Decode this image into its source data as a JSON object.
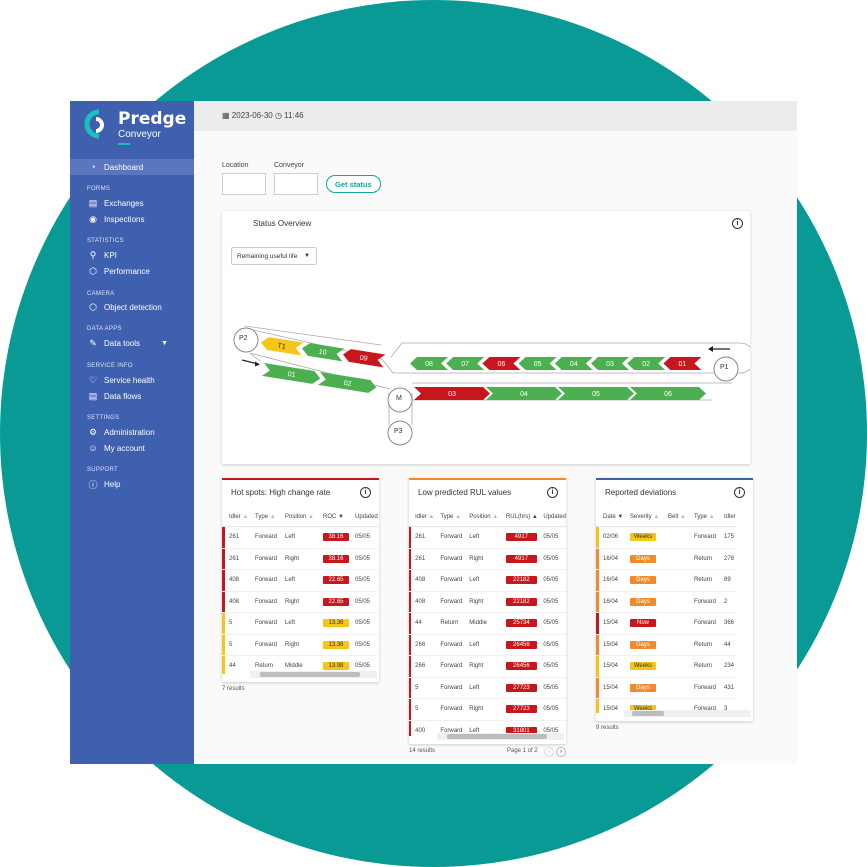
{
  "colors": {
    "teal": "#0a9a95",
    "sidebar": "#3f5faf",
    "red": "#c8161d",
    "green": "#4caf50",
    "yellow": "#f5c518",
    "orange": "#f08a2a"
  },
  "brand": {
    "name": "Predge",
    "product": "Conveyor"
  },
  "sidebar": {
    "dashboard": "Dashboard",
    "sections": {
      "forms": "FORMS",
      "statistics": "STATISTICS",
      "camera": "CAMERA",
      "data_apps": "DATA APPS",
      "service_info": "SERVICE INFO",
      "settings": "SETTINGS",
      "support": "SUPPORT"
    },
    "items": {
      "exchanges": "Exchanges",
      "inspections": "Inspections",
      "kpi": "KPI",
      "performance": "Performance",
      "object_detection": "Object detection",
      "data_tools": "Data tools",
      "service_health": "Service health",
      "data_flows": "Data flows",
      "administration": "Administration",
      "my_account": "My account",
      "help": "Help"
    }
  },
  "topbar": {
    "date": "2023-06-30",
    "time": "11:46"
  },
  "filters": {
    "location_label": "Location",
    "conveyor_label": "Conveyor",
    "location_value": "",
    "conveyor_value": "",
    "button": "Get status"
  },
  "overview": {
    "title": "Status Overview",
    "select": "Remaining useful life",
    "nodes": {
      "p1": "P1",
      "p2": "P2",
      "p3": "P3",
      "m": "M"
    },
    "upper_left": [
      {
        "label": "T1",
        "status": "yellow"
      },
      {
        "label": "10",
        "status": "green"
      },
      {
        "label": "09",
        "status": "red"
      }
    ],
    "lower_left": [
      {
        "label": "01",
        "status": "green"
      },
      {
        "label": "02",
        "status": "green"
      }
    ],
    "upper_right": [
      {
        "label": "08",
        "status": "green"
      },
      {
        "label": "07",
        "status": "green"
      },
      {
        "label": "06",
        "status": "red"
      },
      {
        "label": "05",
        "status": "green"
      },
      {
        "label": "04",
        "status": "green"
      },
      {
        "label": "03",
        "status": "green"
      },
      {
        "label": "02",
        "status": "green"
      },
      {
        "label": "01",
        "status": "red"
      }
    ],
    "lower_right": [
      {
        "label": "03",
        "status": "red"
      },
      {
        "label": "04",
        "status": "green"
      },
      {
        "label": "05",
        "status": "green"
      },
      {
        "label": "06",
        "status": "green"
      }
    ]
  },
  "hotspots": {
    "title": "Hot spots: High change rate",
    "columns": [
      "Idler",
      "Type",
      "Position",
      "ROC",
      "Updated"
    ],
    "rows": [
      {
        "idler": "261",
        "type": "Forward",
        "position": "Left",
        "roc": "38.16",
        "updated": "05/05",
        "level": "red"
      },
      {
        "idler": "261",
        "type": "Forward",
        "position": "Right",
        "roc": "38.16",
        "updated": "05/05",
        "level": "red"
      },
      {
        "idler": "408",
        "type": "Forward",
        "position": "Left",
        "roc": "22.65",
        "updated": "05/05",
        "level": "red"
      },
      {
        "idler": "408",
        "type": "Forward",
        "position": "Right",
        "roc": "22.65",
        "updated": "05/05",
        "level": "red"
      },
      {
        "idler": "5",
        "type": "Forward",
        "position": "Left",
        "roc": "13.36",
        "updated": "05/05",
        "level": "yellow"
      },
      {
        "idler": "5",
        "type": "Forward",
        "position": "Right",
        "roc": "13.36",
        "updated": "05/05",
        "level": "yellow"
      },
      {
        "idler": "44",
        "type": "Return",
        "position": "Middle",
        "roc": "13.98",
        "updated": "05/05",
        "level": "yellow"
      }
    ],
    "results": "7 results"
  },
  "rul": {
    "title": "Low predicted RUL values",
    "columns": [
      "Idler",
      "Type",
      "Position",
      "RUL(hrs)",
      "Updated"
    ],
    "rows": [
      {
        "idler": "261",
        "type": "Forward",
        "position": "Left",
        "rul": "4917",
        "updated": "05/05"
      },
      {
        "idler": "261",
        "type": "Forward",
        "position": "Right",
        "rul": "4917",
        "updated": "05/05"
      },
      {
        "idler": "408",
        "type": "Forward",
        "position": "Left",
        "rul": "22182",
        "updated": "05/05"
      },
      {
        "idler": "408",
        "type": "Forward",
        "position": "Right",
        "rul": "22182",
        "updated": "05/05"
      },
      {
        "idler": "44",
        "type": "Return",
        "position": "Middle",
        "rul": "25734",
        "updated": "05/05"
      },
      {
        "idler": "266",
        "type": "Forward",
        "position": "Left",
        "rul": "26456",
        "updated": "05/05"
      },
      {
        "idler": "266",
        "type": "Forward",
        "position": "Right",
        "rul": "26456",
        "updated": "05/05"
      },
      {
        "idler": "5",
        "type": "Forward",
        "position": "Left",
        "rul": "27723",
        "updated": "05/05"
      },
      {
        "idler": "5",
        "type": "Forward",
        "position": "Right",
        "rul": "27723",
        "updated": "05/05"
      },
      {
        "idler": "400",
        "type": "Forward",
        "position": "Left",
        "rul": "31801",
        "updated": "05/05"
      }
    ],
    "results": "14 results",
    "page": "Page 1 of 2"
  },
  "deviations": {
    "title": "Reported deviations",
    "columns": [
      "Date",
      "Severity",
      "Belt",
      "Type",
      "Idler"
    ],
    "rows": [
      {
        "date": "02/06",
        "severity": "Weeks",
        "belt": "",
        "type": "Forward",
        "idler": "175",
        "level": "yellow"
      },
      {
        "date": "16/04",
        "severity": "Days",
        "belt": "",
        "type": "Return",
        "idler": "278",
        "level": "orange"
      },
      {
        "date": "16/04",
        "severity": "Days",
        "belt": "",
        "type": "Return",
        "idler": "89",
        "level": "orange"
      },
      {
        "date": "16/04",
        "severity": "Days",
        "belt": "",
        "type": "Forward",
        "idler": "2",
        "level": "orange"
      },
      {
        "date": "15/04",
        "severity": "Now",
        "belt": "",
        "type": "Forward",
        "idler": "366",
        "level": "red"
      },
      {
        "date": "15/04",
        "severity": "Days",
        "belt": "",
        "type": "Return",
        "idler": "44",
        "level": "orange"
      },
      {
        "date": "15/04",
        "severity": "Weeks",
        "belt": "",
        "type": "Return",
        "idler": "234",
        "level": "yellow"
      },
      {
        "date": "15/04",
        "severity": "Days",
        "belt": "",
        "type": "Forward",
        "idler": "431",
        "level": "orange"
      },
      {
        "date": "15/04",
        "severity": "Weeks",
        "belt": "",
        "type": "Forward",
        "idler": "3",
        "level": "yellow"
      }
    ],
    "results": "9 results"
  }
}
